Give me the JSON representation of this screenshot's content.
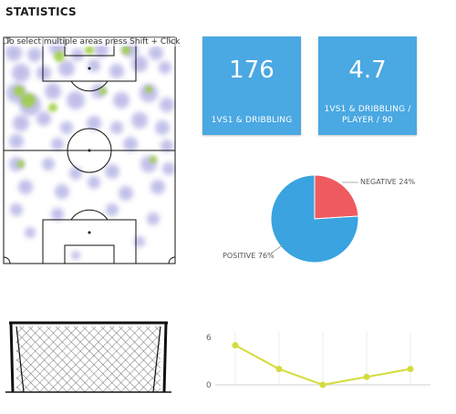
{
  "page": {
    "title": "STATISTICS"
  },
  "pitch": {
    "hint": "To select multiple areas press Shift + Click"
  },
  "cards": [
    {
      "value": "176",
      "label": "1VS1 & DRIBBLING"
    },
    {
      "value": "4.7",
      "label": "1VS1 & DRIBBLING / PLAYER / 90"
    }
  ],
  "colors": {
    "card": "#4aa8e2",
    "pie_positive": "#3aa3e0",
    "pie_negative": "#ef5a5f",
    "line": "#d4dc3c",
    "heat_low": "#8f8cd8",
    "heat_high": "#9ccf3c"
  },
  "chart_data": [
    {
      "type": "pie",
      "slices": [
        {
          "label": "NEGATIVE 24%",
          "value": 24
        },
        {
          "label": "POSITIVE 76%",
          "value": 76
        }
      ]
    },
    {
      "type": "line",
      "y_ticks": [
        "6",
        "0"
      ],
      "ylim": [
        0,
        6
      ],
      "grid": "vertical",
      "x": [
        1,
        2,
        3,
        4,
        5
      ],
      "values": [
        5,
        2,
        0,
        1,
        2
      ]
    }
  ]
}
